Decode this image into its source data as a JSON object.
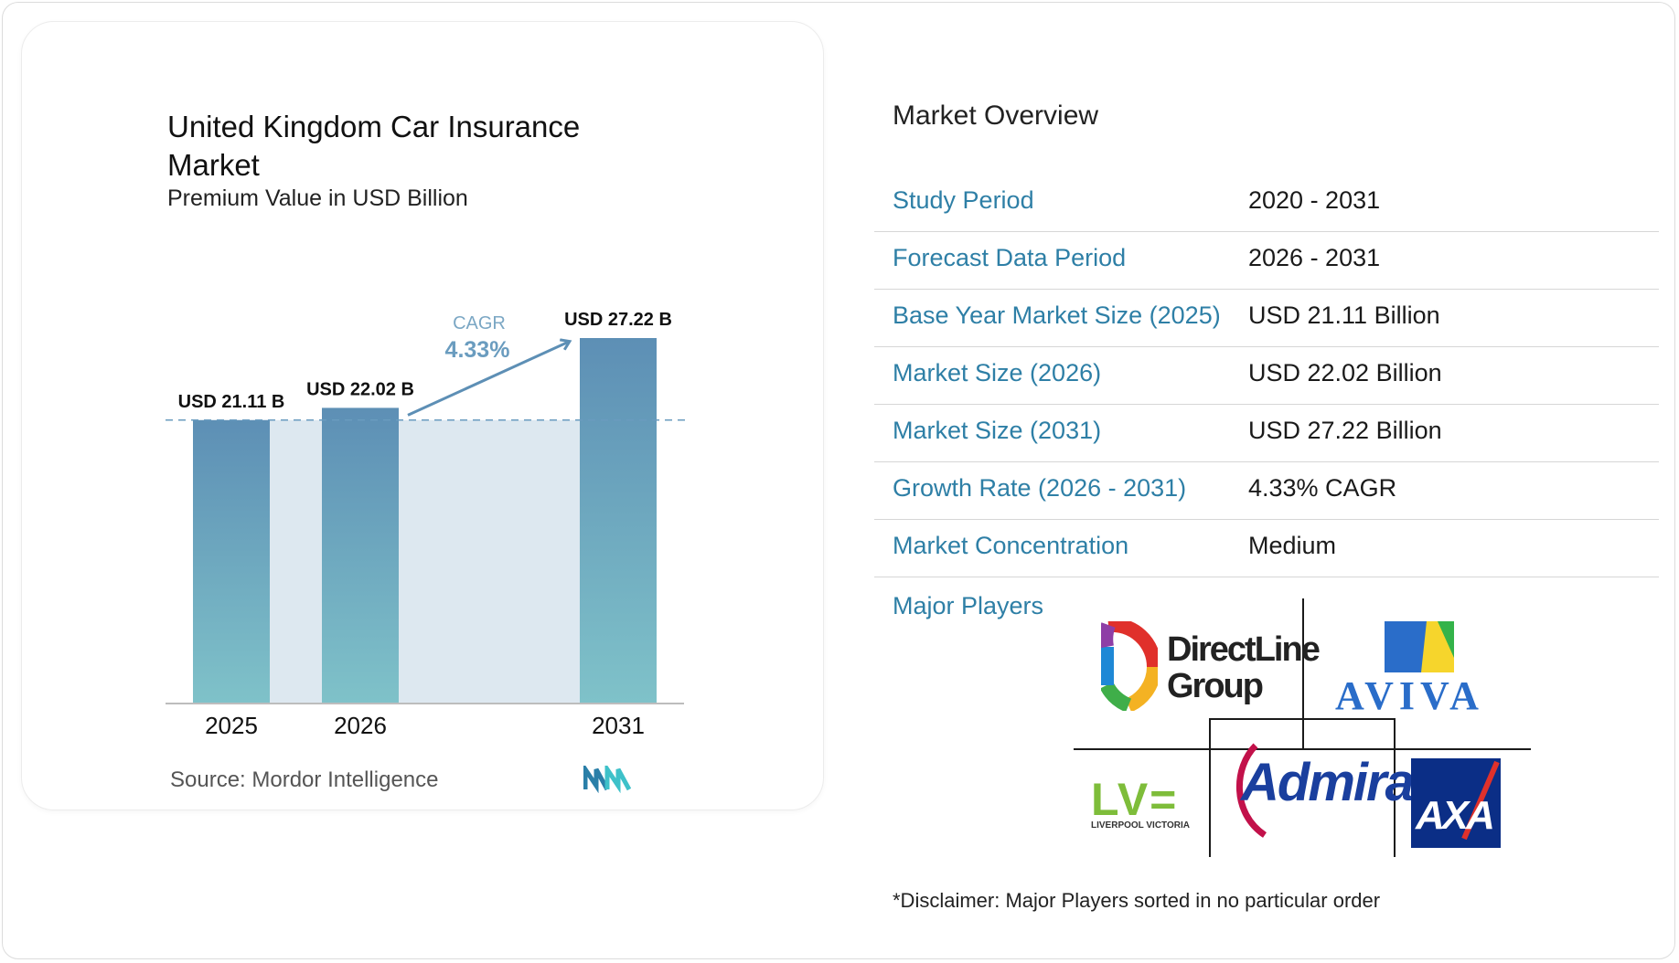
{
  "chart": {
    "title": "United Kingdom Car Insurance Market",
    "subtitle": "Premium Value in USD Billion",
    "source": "Source: Mordor Intelligence",
    "cagr_label": "CAGR",
    "cagr_value": "4.33%",
    "colors": {
      "bar_top": "#5d8fb5",
      "bar_bottom": "#7fc2c9",
      "shade": "#dde8f0",
      "arrow": "#5d8fb5",
      "dashed": "#6a9cbf"
    }
  },
  "chart_data": {
    "type": "bar",
    "title": "United Kingdom Car Insurance Market",
    "subtitle": "Premium Value in USD Billion",
    "categories": [
      "2025",
      "2026",
      "2031"
    ],
    "values": [
      21.11,
      22.02,
      27.22
    ],
    "data_labels": [
      "USD 21.11 B",
      "USD 22.02 B",
      "USD 27.22 B"
    ],
    "xlabel": "",
    "ylabel": "",
    "grid": false,
    "legend": "none",
    "annotation": {
      "text": "CAGR 4.33%",
      "from": "2026",
      "to": "2031"
    }
  },
  "overview": {
    "title": "Market Overview",
    "rows": [
      {
        "label": "Study Period",
        "value": "2020 - 2031"
      },
      {
        "label": "Forecast Data Period",
        "value": "2026 - 2031"
      },
      {
        "label": "Base Year Market Size (2025)",
        "value": "USD 21.11 Billion"
      },
      {
        "label": "Market Size (2026)",
        "value": "USD 22.02 Billion"
      },
      {
        "label": "Market Size (2031)",
        "value": "USD 27.22 Billion"
      },
      {
        "label": "Growth Rate (2026 - 2031)",
        "value": "4.33% CAGR"
      },
      {
        "label": "Market Concentration",
        "value": "Medium"
      }
    ],
    "players_label": "Major Players",
    "players": {
      "directline_1": "DirectLine",
      "directline_2": "Group",
      "aviva": "AVIVA",
      "lv": "LV=",
      "lv_sub": "LIVERPOOL VICTORIA",
      "admiral": "Admiral",
      "axa": "AXA"
    },
    "disclaimer": "*Disclaimer: Major Players sorted in no particular order"
  }
}
